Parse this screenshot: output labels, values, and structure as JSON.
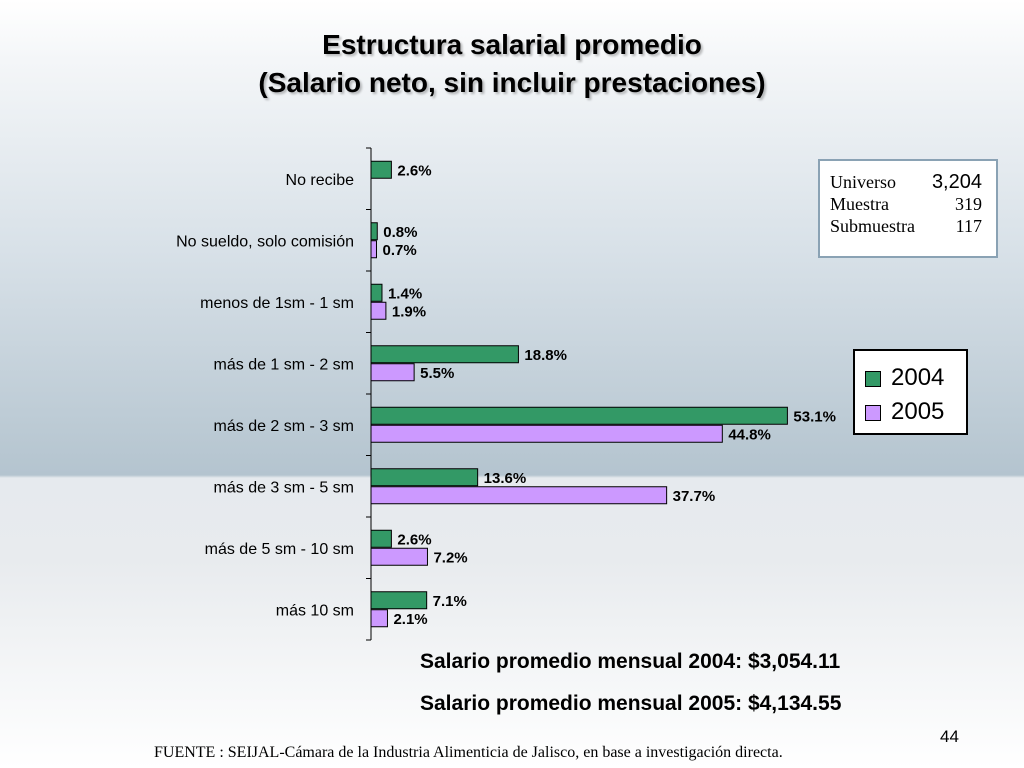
{
  "slide": {
    "title_line1": "Estructura salarial promedio",
    "title_line2": "(Salario neto, sin incluir prestaciones)",
    "summary_2004": "Salario promedio mensual 2004: $3,054.11",
    "summary_2005": "Salario promedio mensual 2005: $4,134.55",
    "source": "FUENTE : SEIJAL-Cámara de la Industria Alimenticia de Jalisco,  en base a investigación directa.",
    "page_number": "44"
  },
  "sample_box": {
    "rows": [
      {
        "label": "Universo",
        "value": "3,204"
      },
      {
        "label": "Muestra",
        "value": "319"
      },
      {
        "label": "Submuestra",
        "value": "117"
      }
    ]
  },
  "chart_data": {
    "type": "bar",
    "orientation": "horizontal",
    "categories": [
      "No recibe",
      "No sueldo, solo comisión",
      "menos de 1sm - 1 sm",
      "más de 1 sm - 2 sm",
      "más de 2 sm - 3 sm",
      "más de 3 sm - 5 sm",
      "más de 5 sm - 10 sm",
      "más 10 sm"
    ],
    "series": [
      {
        "name": "2004",
        "color": "#339966",
        "values": [
          2.6,
          0.8,
          1.4,
          18.8,
          53.1,
          13.6,
          2.6,
          7.1
        ],
        "labels": [
          "2.6%",
          "0.8%",
          "1.4%",
          "18.8%",
          "53.1%",
          "13.6%",
          "2.6%",
          "7.1%"
        ]
      },
      {
        "name": "2005",
        "color": "#cc99ff",
        "values": [
          null,
          0.7,
          1.9,
          5.5,
          44.8,
          37.7,
          7.2,
          2.1
        ],
        "labels": [
          "",
          "0.7%",
          "1.9%",
          "5.5%",
          "44.8%",
          "37.7%",
          "7.2%",
          "2.1%"
        ]
      }
    ],
    "xlim": [
      0,
      56
    ],
    "legend": "right"
  }
}
